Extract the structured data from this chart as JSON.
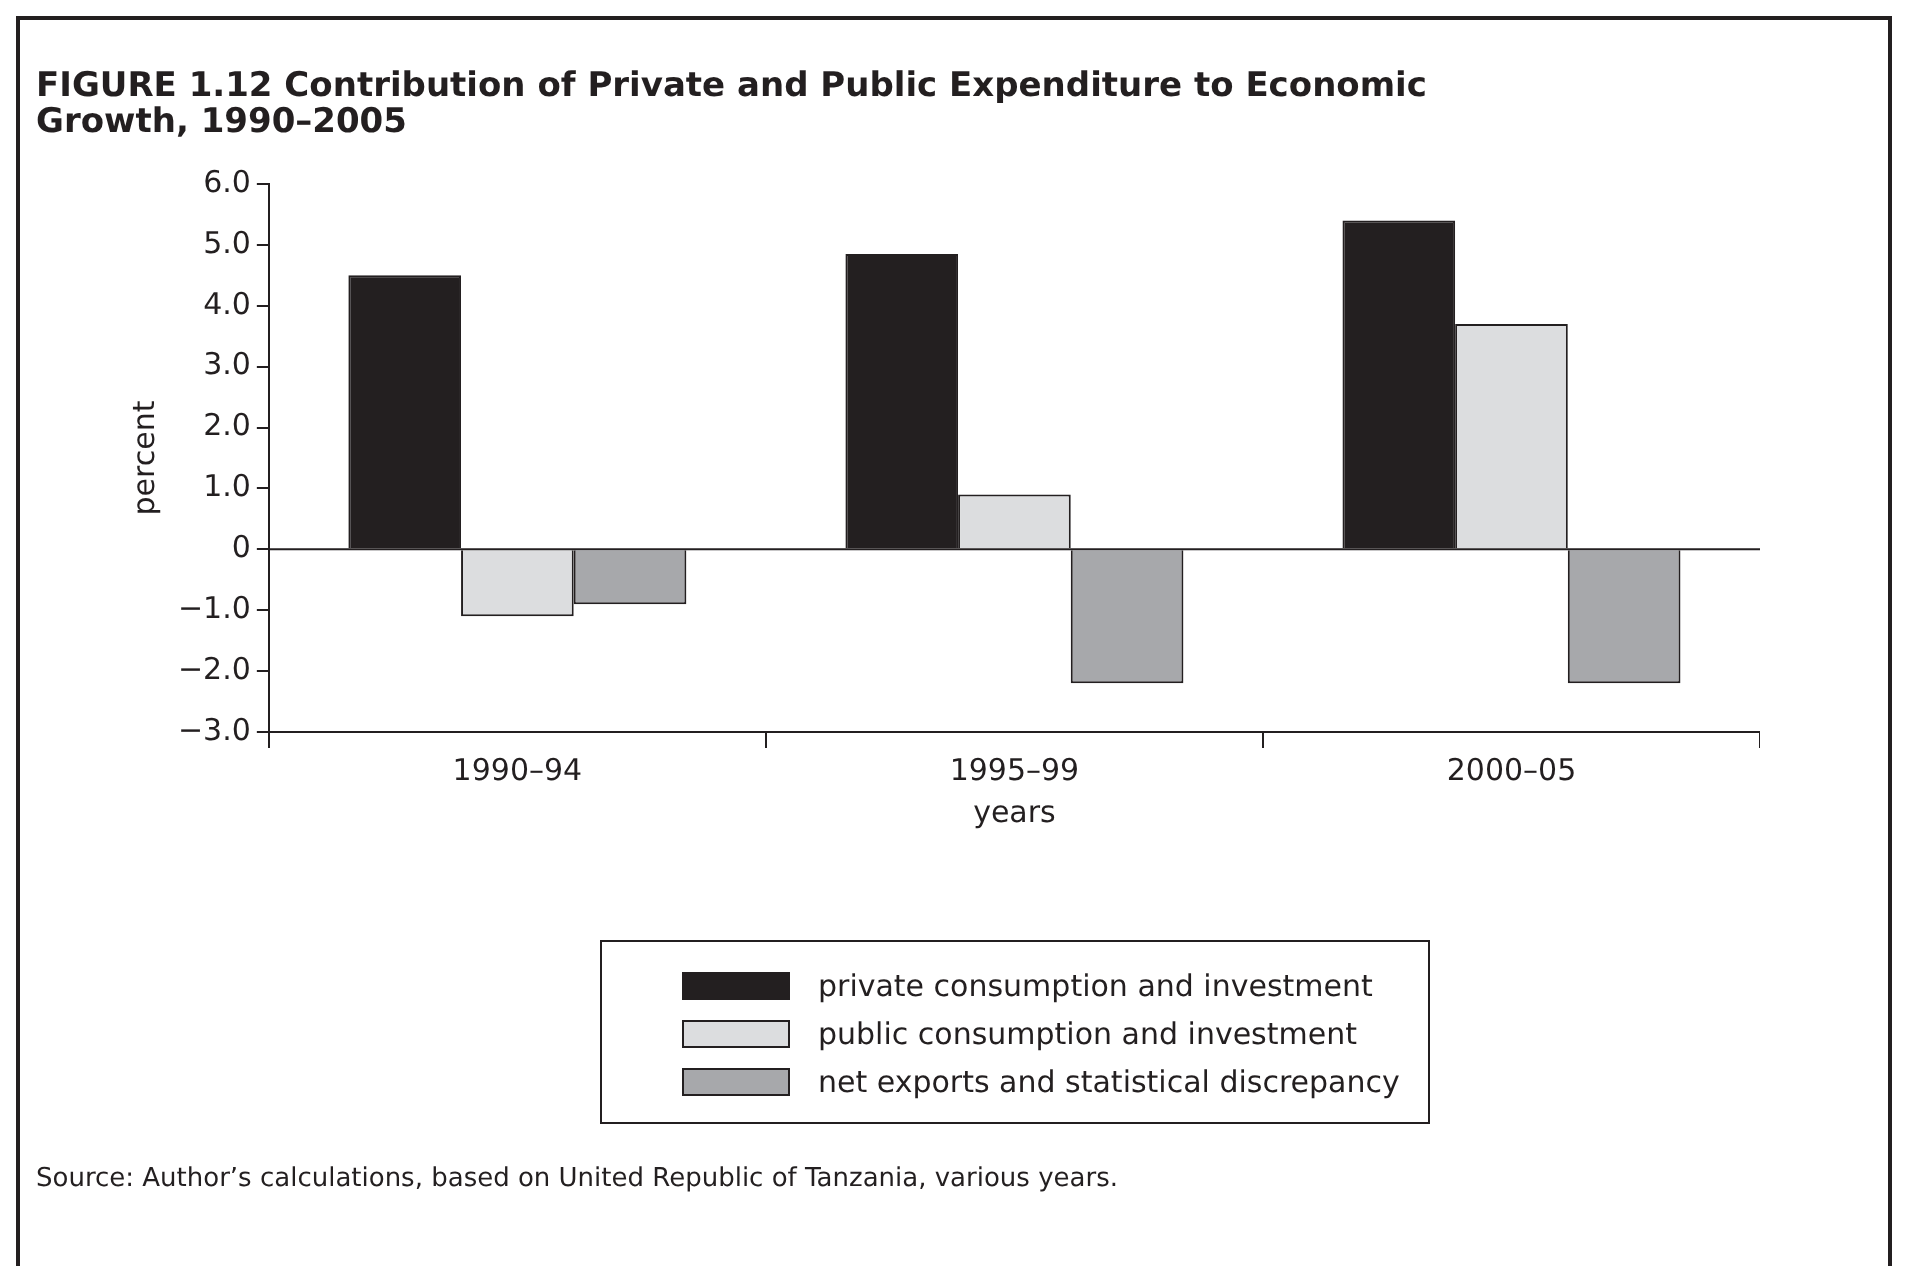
{
  "chart_data": {
    "type": "bar",
    "title": "FIGURE 1.12  Contribution of Private and Public Expenditure to Economic Growth, 1990–2005",
    "xlabel": "years",
    "ylabel": "percent",
    "categories": [
      "1990–94",
      "1995–99",
      "2000–05"
    ],
    "series": [
      {
        "name": "private consumption and investment",
        "color": "#231f20",
        "values": [
          4.5,
          4.85,
          5.4
        ]
      },
      {
        "name": "public consumption and investment",
        "color": "#dcdddf",
        "values": [
          -1.1,
          0.9,
          3.7
        ]
      },
      {
        "name": "net exports and statistical discrepancy",
        "color": "#a7a8ab",
        "values": [
          -0.9,
          -2.2,
          -2.2
        ]
      }
    ],
    "ylim": [
      -3,
      6
    ],
    "yticks": [
      {
        "value": -3,
        "label": "−3.0"
      },
      {
        "value": -2,
        "label": "−2.0"
      },
      {
        "value": -1,
        "label": "−1.0"
      },
      0,
      {
        "value": 1,
        "label": "1.0"
      },
      {
        "value": 2,
        "label": "2.0"
      },
      {
        "value": 3,
        "label": "3.0"
      },
      {
        "value": 4,
        "label": "4.0"
      },
      {
        "value": 5,
        "label": "5.0"
      },
      {
        "value": 6,
        "label": "6.0"
      }
    ],
    "grid": false,
    "legend": "bottom",
    "ref_lines": [
      {
        "axis": "y",
        "value": 0,
        "color": "#231f20"
      }
    ],
    "annotations": [
      "Source: Author’s calculations, based on United Republic of Tanzania, various years."
    ]
  }
}
